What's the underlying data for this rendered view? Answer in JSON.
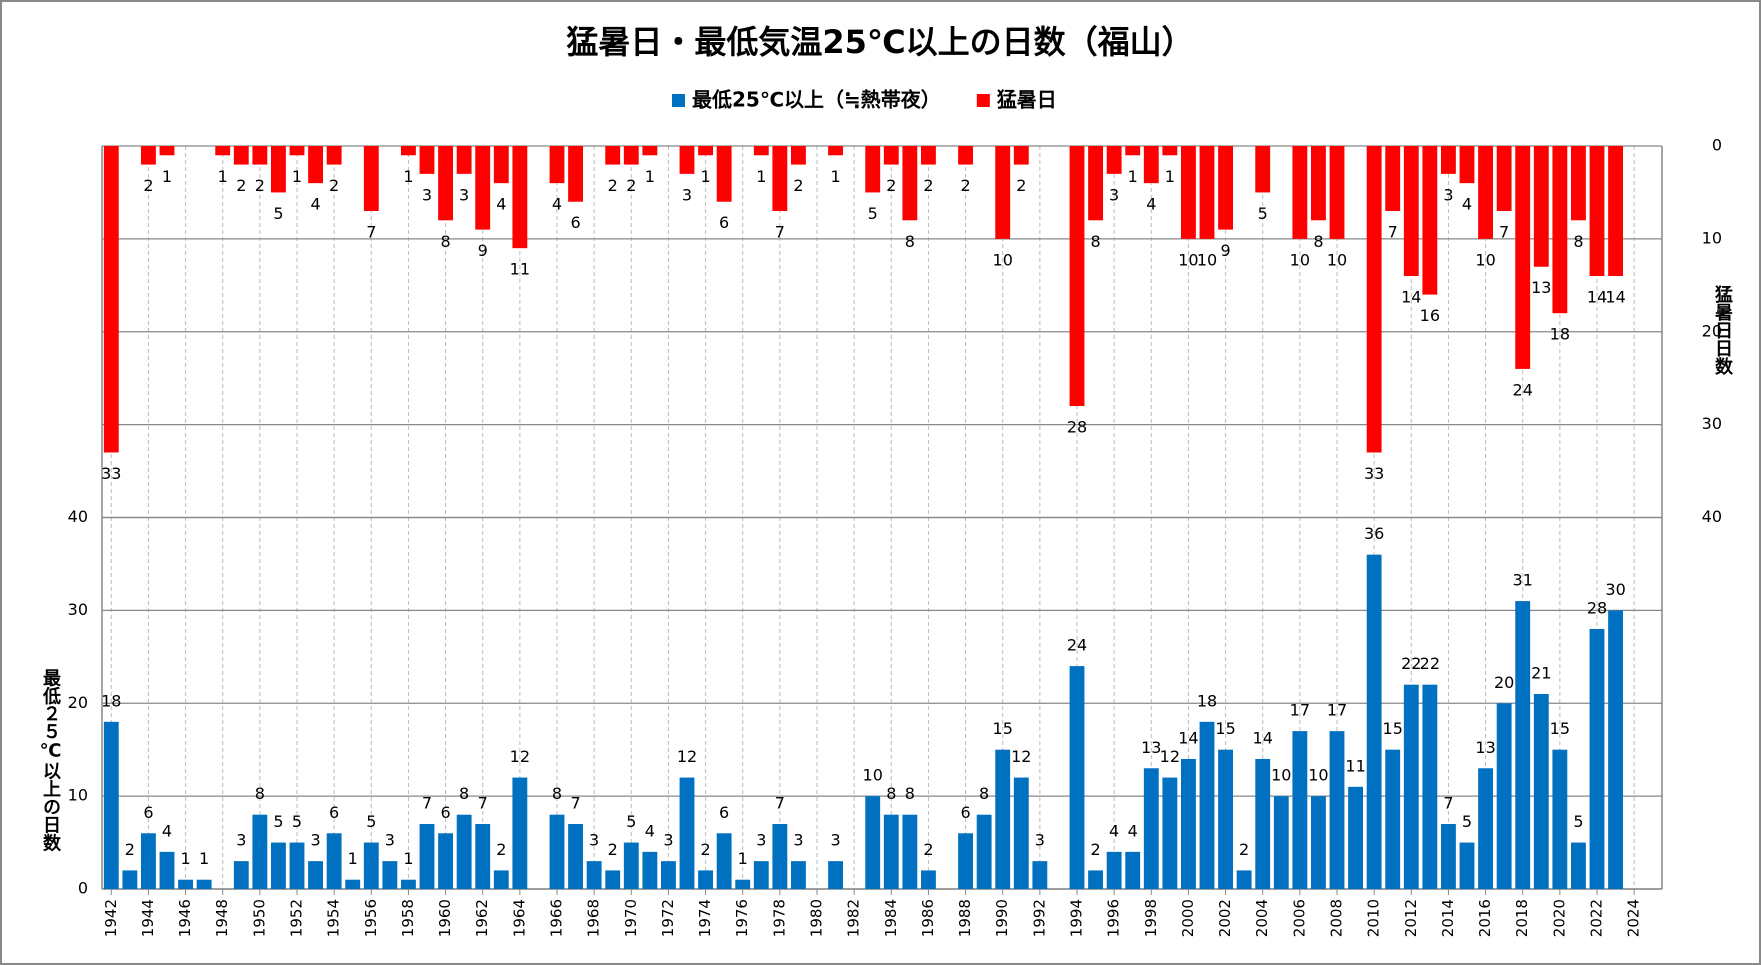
{
  "chart_data": {
    "type": "bar",
    "title": "猛暑日・最低気温25℃以上の日数（福山）",
    "y_label": "最低２５℃以上の日数",
    "y2_label": "猛暑日日数",
    "x": [
      1942,
      1943,
      1944,
      1945,
      1946,
      1947,
      1948,
      1949,
      1950,
      1951,
      1952,
      1953,
      1954,
      1955,
      1956,
      1957,
      1958,
      1959,
      1960,
      1961,
      1962,
      1963,
      1964,
      1965,
      1966,
      1967,
      1968,
      1969,
      1970,
      1971,
      1972,
      1973,
      1974,
      1975,
      1976,
      1977,
      1978,
      1979,
      1980,
      1981,
      1982,
      1983,
      1984,
      1985,
      1986,
      1987,
      1988,
      1989,
      1990,
      1991,
      1992,
      1993,
      1994,
      1995,
      1996,
      1997,
      1998,
      1999,
      2000,
      2001,
      2002,
      2003,
      2004,
      2005,
      2006,
      2007,
      2008,
      2009,
      2010,
      2011,
      2012,
      2013,
      2014,
      2015,
      2016,
      2017,
      2018,
      2019,
      2020,
      2021,
      2022,
      2023,
      2024
    ],
    "series": [
      {
        "name": "最低25℃以上（≒熱帯夜）",
        "color": "#0070c0",
        "axis": "y",
        "values": [
          18,
          2,
          6,
          4,
          1,
          1,
          null,
          3,
          8,
          5,
          5,
          3,
          6,
          1,
          5,
          3,
          1,
          7,
          6,
          8,
          7,
          2,
          12,
          null,
          8,
          7,
          3,
          2,
          5,
          4,
          3,
          12,
          2,
          6,
          1,
          3,
          7,
          3,
          null,
          3,
          null,
          10,
          8,
          8,
          2,
          null,
          6,
          8,
          15,
          12,
          3,
          null,
          24,
          2,
          4,
          4,
          13,
          12,
          14,
          18,
          15,
          2,
          14,
          10,
          17,
          10,
          17,
          11,
          36,
          15,
          22,
          22,
          7,
          5,
          13,
          20,
          31,
          21,
          15,
          5,
          28,
          30,
          null
        ]
      },
      {
        "name": "猛暑日",
        "color": "#ff0000",
        "axis": "y2",
        "values": [
          33,
          null,
          2,
          1,
          null,
          null,
          1,
          2,
          2,
          5,
          1,
          4,
          2,
          null,
          7,
          null,
          1,
          3,
          8,
          3,
          9,
          4,
          11,
          null,
          4,
          6,
          null,
          2,
          2,
          1,
          null,
          3,
          1,
          6,
          null,
          1,
          7,
          2,
          null,
          1,
          null,
          5,
          2,
          8,
          2,
          null,
          2,
          null,
          10,
          2,
          null,
          null,
          28,
          8,
          3,
          1,
          4,
          1,
          10,
          10,
          9,
          null,
          5,
          null,
          10,
          8,
          10,
          null,
          33,
          7,
          14,
          16,
          3,
          4,
          10,
          7,
          24,
          13,
          18,
          8,
          14,
          14,
          null
        ]
      }
    ],
    "xlim": [
      1941.5,
      2025.5
    ],
    "xticks": [
      1942,
      1944,
      1946,
      1948,
      1950,
      1952,
      1954,
      1956,
      1958,
      1960,
      1962,
      1964,
      1966,
      1968,
      1970,
      1972,
      1974,
      1976,
      1978,
      1980,
      1982,
      1984,
      1986,
      1988,
      1990,
      1992,
      1994,
      1996,
      1998,
      2000,
      2002,
      2004,
      2006,
      2008,
      2010,
      2012,
      2014,
      2016,
      2018,
      2020,
      2022,
      2024
    ],
    "ylim": [
      0,
      80
    ],
    "yticks": [
      0,
      10,
      20,
      30,
      40
    ],
    "y2lim": [
      80,
      0
    ],
    "y2ticks": [
      0,
      10,
      20,
      30,
      40
    ],
    "grid": true,
    "legend": "top"
  }
}
